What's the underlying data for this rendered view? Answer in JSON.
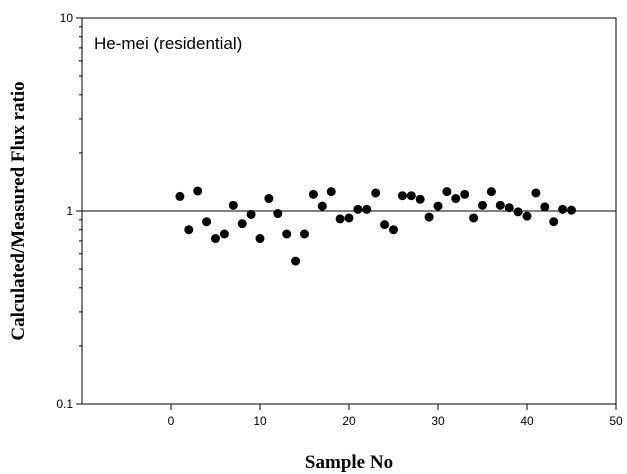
{
  "chart_data": {
    "type": "scatter",
    "title": "",
    "annotation": "He-mei (residential)",
    "xlabel": "Sample No",
    "ylabel": "Calculated/Measured Flux ratio",
    "xlim": [
      -10,
      50
    ],
    "ylim": [
      0.1,
      10
    ],
    "y_scale": "log",
    "x_ticks": [
      0,
      10,
      20,
      30,
      40,
      50
    ],
    "x_tick_labels": [
      "0",
      "10",
      "20",
      "30",
      "40",
      "50"
    ],
    "y_ticks": [
      0.1,
      1,
      10
    ],
    "y_tick_labels": [
      "0.1",
      "1",
      "10"
    ],
    "reference_line": 1,
    "grid": false,
    "marker_color": "#000000",
    "x": [
      1,
      2,
      3,
      4,
      5,
      6,
      7,
      8,
      9,
      10,
      11,
      12,
      13,
      14,
      15,
      16,
      17,
      18,
      19,
      20,
      21,
      22,
      23,
      24,
      25,
      26,
      27,
      28,
      29,
      30,
      31,
      32,
      33,
      34,
      35,
      36,
      37,
      38,
      39,
      40,
      41,
      42,
      43,
      44,
      45
    ],
    "y": [
      1.19,
      0.8,
      1.27,
      0.88,
      0.72,
      0.76,
      1.07,
      0.86,
      0.96,
      0.72,
      1.16,
      0.97,
      0.76,
      0.55,
      0.76,
      1.22,
      1.06,
      1.26,
      0.91,
      0.92,
      1.02,
      1.02,
      1.24,
      0.85,
      0.8,
      1.2,
      1.2,
      1.15,
      0.93,
      1.06,
      1.26,
      1.16,
      1.22,
      0.92,
      1.07,
      1.26,
      1.07,
      1.04,
      0.99,
      0.94,
      1.24,
      1.05,
      0.88,
      1.02,
      1.01
    ]
  }
}
